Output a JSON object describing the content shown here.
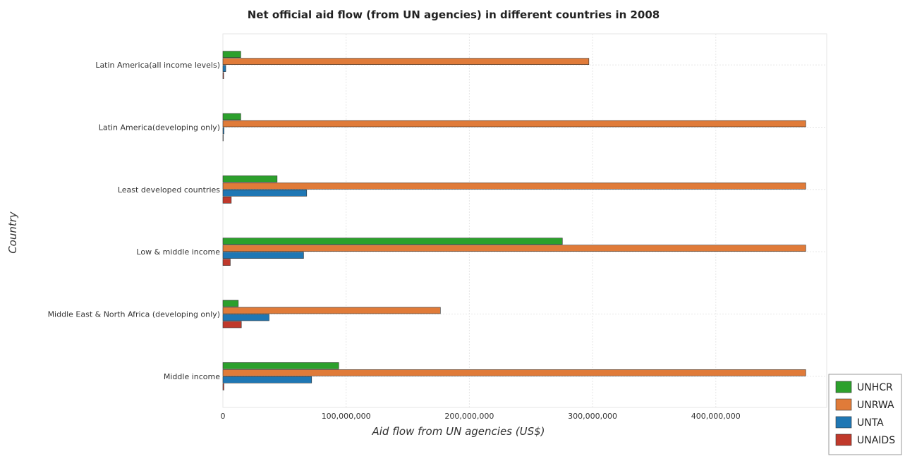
{
  "chart_data": {
    "type": "bar",
    "orientation": "horizontal",
    "title": "Net official aid flow (from UN agencies) in different countries in 2008",
    "xlabel": "Aid flow from UN agencies (US$)",
    "ylabel": "Country",
    "xlim": [
      0,
      490000000
    ],
    "xticks": [
      0,
      100000000,
      200000000,
      300000000,
      400000000
    ],
    "xtick_labels": [
      "0",
      "100,000,000",
      "200,000,000",
      "300,000,000",
      "400,000,000"
    ],
    "grid": true,
    "legend_position": "bottom-right",
    "categories": [
      "Latin America(all income levels)",
      "Latin America(developing only)",
      "Least developed countries",
      "Low & middle income",
      "Middle East & North Africa (developing only)",
      "Middle income"
    ],
    "series": [
      {
        "name": "UNHCR",
        "color": "#2ca02c",
        "values": [
          14500000,
          14500000,
          44000000,
          275500000,
          12500000,
          94000000
        ]
      },
      {
        "name": "UNRWA",
        "color": "#e07b39",
        "values": [
          297000000,
          473000000,
          473000000,
          473000000,
          176500000,
          473000000
        ]
      },
      {
        "name": "UNTA",
        "color": "#1f77b4",
        "values": [
          2300000,
          900000,
          68000000,
          65500000,
          37500000,
          72000000
        ]
      },
      {
        "name": "UNAIDS",
        "color": "#c0392b",
        "values": [
          600000,
          100000,
          6800000,
          6000000,
          15000000,
          800000
        ]
      }
    ]
  }
}
